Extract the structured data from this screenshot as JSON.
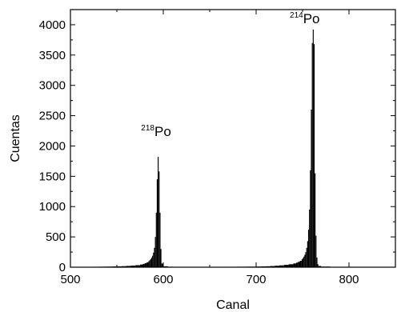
{
  "chart_data": {
    "type": "bar",
    "title": "",
    "xlabel": "Canal",
    "ylabel": "Cuentas",
    "xlim": [
      500,
      850
    ],
    "ylim": [
      0,
      4250
    ],
    "x_ticks": [
      500,
      600,
      700,
      800
    ],
    "y_ticks": [
      0,
      500,
      1000,
      1500,
      2000,
      2500,
      3000,
      3500,
      4000
    ],
    "grid": false,
    "bar_color": "#000000",
    "annotations": [
      {
        "label": "Po",
        "mass_number": "218",
        "peak_channel": 594,
        "peak_counts": 1820
      },
      {
        "label": "Po",
        "mass_number": "214",
        "peak_channel": 761,
        "peak_counts": 3920
      }
    ],
    "x": [
      500,
      505,
      510,
      515,
      520,
      525,
      530,
      535,
      540,
      545,
      550,
      555,
      560,
      565,
      570,
      575,
      578,
      580,
      582,
      584,
      585,
      586,
      587,
      588,
      589,
      590,
      591,
      592,
      593,
      594,
      595,
      596,
      597,
      598,
      600,
      605,
      610,
      620,
      630,
      640,
      650,
      660,
      670,
      680,
      690,
      700,
      705,
      710,
      715,
      720,
      725,
      730,
      735,
      740,
      743,
      745,
      747,
      749,
      750,
      751,
      752,
      753,
      754,
      755,
      756,
      757,
      758,
      759,
      760,
      761,
      762,
      763,
      764,
      765,
      766,
      767,
      770,
      780,
      790,
      800,
      820,
      840,
      850
    ],
    "values": [
      5,
      5,
      5,
      6,
      6,
      7,
      8,
      9,
      10,
      12,
      14,
      17,
      21,
      26,
      33,
      44,
      55,
      65,
      80,
      100,
      115,
      135,
      160,
      190,
      240,
      320,
      500,
      900,
      1450,
      1820,
      1580,
      900,
      300,
      60,
      15,
      8,
      6,
      5,
      5,
      5,
      6,
      6,
      7,
      8,
      9,
      11,
      13,
      15,
      19,
      24,
      30,
      38,
      48,
      62,
      75,
      88,
      105,
      130,
      150,
      175,
      205,
      250,
      320,
      430,
      620,
      950,
      1600,
      2600,
      3700,
      3920,
      3680,
      1550,
      520,
      160,
      50,
      20,
      10,
      6,
      5,
      5,
      5,
      5,
      5
    ]
  }
}
